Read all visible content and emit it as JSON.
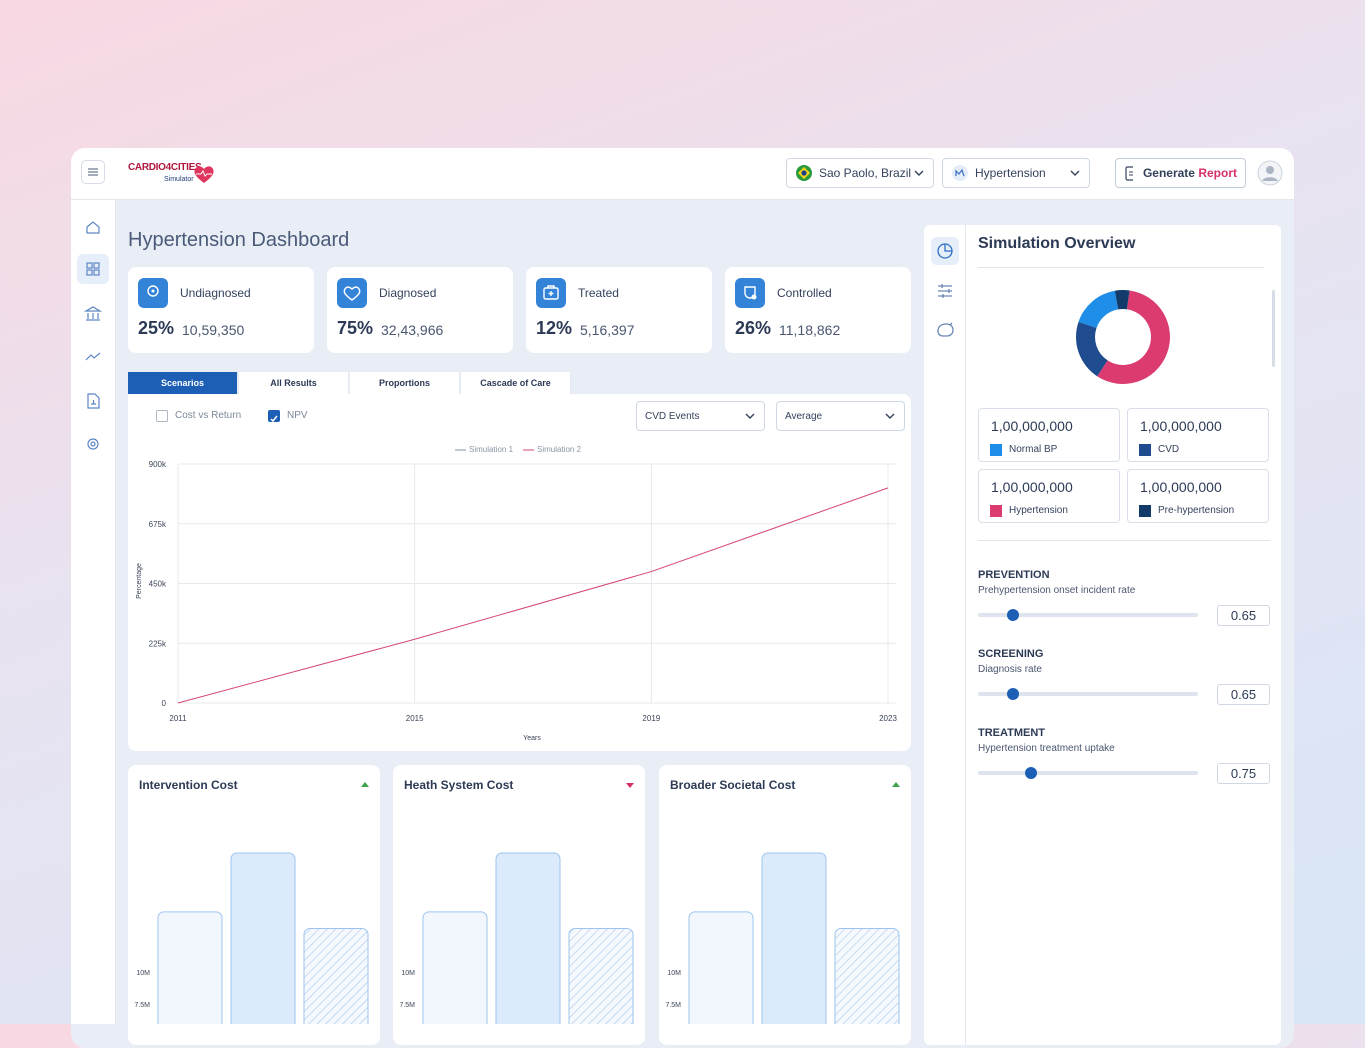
{
  "header": {
    "brand": "CARDIO4CITIES",
    "tagline": "Simulator",
    "location": "Sao Paolo, Brazil",
    "condition": "Hypertension",
    "action": {
      "lead": "Generate",
      "accent": "Report"
    }
  },
  "dashboard_title": "Hypertension Dashboard",
  "stats": [
    {
      "label": "Undiagnosed",
      "percent": "25%",
      "count": "10,59,350"
    },
    {
      "label": "Diagnosed",
      "percent": "75%",
      "count": "32,43,966"
    },
    {
      "label": "Treated",
      "percent": "12%",
      "count": "5,16,397"
    },
    {
      "label": "Controlled",
      "percent": "26%",
      "count": "11,18,862"
    }
  ],
  "tabs": [
    "Scenarios",
    "All Results",
    "Proportions",
    "Cascade of Care"
  ],
  "active_tab": 0,
  "options": {
    "checkboxes": [
      {
        "label": "Cost vs Return",
        "checked": false
      },
      {
        "label": "NPV",
        "checked": true
      }
    ],
    "dropdowns": [
      "CVD Events",
      "Average"
    ]
  },
  "overview": {
    "amounts": [
      "1,00,000,000",
      "1,00,000,000",
      "1,00,000,000",
      "1,00,000,000"
    ],
    "parameters": [
      {
        "section": "PREVENTION",
        "label": "Prehypertension onset incident rate",
        "value": 0.65
      },
      {
        "section": "SCREENING",
        "label": "Diagnosis rate",
        "value": 0.65
      },
      {
        "section": "TREATMENT",
        "label": "Hypertension treatment uptake",
        "value": 0.75
      }
    ]
  },
  "chart_data": [
    {
      "type": "line",
      "x": [
        2011,
        2015,
        2019,
        2023
      ],
      "xlim": [
        2011,
        2023
      ],
      "xticks": [
        2011,
        2015,
        2019,
        2023
      ],
      "ylim": [
        0,
        900000
      ],
      "yticks": [
        0,
        {
          "value": 225000,
          "label": "225k"
        },
        {
          "value": 450000,
          "label": "450k"
        },
        {
          "value": 675000,
          "label": "675k"
        },
        {
          "value": 900000,
          "label": "900k"
        }
      ],
      "y_label": "Percentage",
      "x_label": "Years",
      "grid": true,
      "series": [
        {
          "name": "Simulation 1",
          "color": "#7f93aa",
          "values": [
            null,
            null,
            null,
            null
          ]
        },
        {
          "name": "Simulation 2",
          "color": "#d6457a",
          "values": [
            0,
            240000,
            495000,
            810000
          ]
        }
      ]
    },
    {
      "type": "pie",
      "title": "Simulation Overview",
      "categories": [
        "Normal BP",
        "CVD",
        "Hypertension",
        "Pre-hypertension"
      ],
      "values": [
        17,
        21,
        57,
        5
      ],
      "colors": [
        "#1e8ee8",
        "#1f4c8f",
        "#dc3b6f",
        "#123a6b"
      ]
    },
    {
      "type": "bar",
      "title": "Intervention Cost",
      "trend": "up",
      "categories": [
        null,
        null,
        null
      ],
      "values": [
        14700000,
        19300000,
        13400000
      ],
      "colors": [
        "#f2f7fe",
        "#dcebfc",
        "#f5f8fc"
      ],
      "hatched": [
        false,
        false,
        true
      ],
      "ylim": [
        0,
        22500000
      ],
      "yticks": [
        {
          "value": 7500000,
          "label": "7.5M"
        },
        {
          "value": 10000000,
          "label": "10M"
        }
      ],
      "grid": false
    },
    {
      "type": "bar",
      "title": "Heath System Cost",
      "trend": "down",
      "categories": [
        null,
        null,
        null
      ],
      "values": [
        14700000,
        19300000,
        13400000
      ],
      "colors": [
        "#f2f7fe",
        "#dcebfc",
        "#f5f8fc"
      ],
      "hatched": [
        false,
        false,
        true
      ],
      "ylim": [
        0,
        22500000
      ],
      "yticks": [
        {
          "value": 7500000,
          "label": "7.5M"
        },
        {
          "value": 10000000,
          "label": "10M"
        }
      ],
      "grid": false
    },
    {
      "type": "bar",
      "title": "Broader Societal Cost",
      "trend": "up",
      "categories": [
        null,
        null,
        null
      ],
      "values": [
        14700000,
        19300000,
        13400000
      ],
      "colors": [
        "#f2f7fe",
        "#dcebfc",
        "#f5f8fc"
      ],
      "hatched": [
        false,
        false,
        true
      ],
      "ylim": [
        0,
        22500000
      ],
      "yticks": [
        {
          "value": 7500000,
          "label": "7.5M"
        },
        {
          "value": 10000000,
          "label": "10M"
        }
      ],
      "grid": false
    }
  ]
}
